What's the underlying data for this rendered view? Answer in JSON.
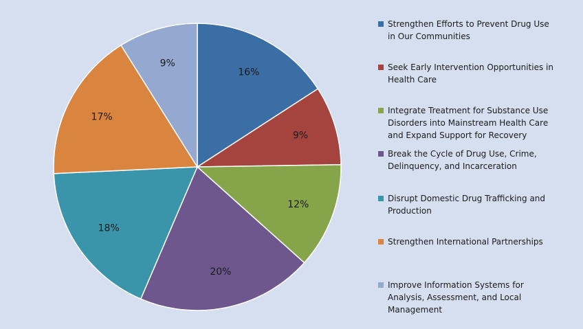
{
  "chart_data": {
    "type": "pie",
    "slices": [
      {
        "label": "Strengthen Efforts to Prevent Drug Use in Our Communities",
        "value": 16,
        "display": "16%",
        "color": "#3b6ea5"
      },
      {
        "label": "Seek Early Intervention Opportunities in Health Care",
        "value": 9,
        "display": "9%",
        "color": "#a5443f"
      },
      {
        "label": "Integrate Treatment for Substance Use Disorders into Mainstream Health Care and Expand Support for Recovery",
        "value": 12,
        "display": "12%",
        "color": "#86a44a"
      },
      {
        "label": "Break the Cycle of Drug Use, Crime, Delinquency, and Incarceration",
        "value": 20,
        "display": "20%",
        "color": "#6d578c"
      },
      {
        "label": "Disrupt Domestic Drug Trafficking and Production",
        "value": 18,
        "display": "18%",
        "color": "#3a95aa"
      },
      {
        "label": "Strengthen International Partnerships",
        "value": 17,
        "display": "17%",
        "color": "#d9843f"
      },
      {
        "label": "Improve Information Systems for Analysis, Assessment, and Local Management",
        "value": 9,
        "display": "9%",
        "color": "#95a9d0"
      }
    ],
    "start_angle": "12 o'clock",
    "direction": "clockwise",
    "legend_position": "right"
  },
  "legend": {
    "items": [
      {
        "lines": [
          "Strengthen Efforts to Prevent Drug Use",
          "in Our Communities"
        ]
      },
      {
        "lines": [
          "Seek Early Intervention Opportunities in",
          "Health Care"
        ]
      },
      {
        "lines": [
          "Integrate Treatment for Substance Use",
          "Disorders into Mainstream Health Care",
          "and Expand Support for Recovery"
        ]
      },
      {
        "lines": [
          "Break the Cycle of Drug Use, Crime,",
          "Delinquency, and Incarceration"
        ]
      },
      {
        "lines": [
          "Disrupt Domestic Drug Trafficking and",
          "Production"
        ]
      },
      {
        "lines": [
          "Strengthen International Partnerships"
        ]
      },
      {
        "lines": [
          "Improve Information Systems for",
          "Analysis, Assessment, and Local",
          "Management"
        ]
      }
    ]
  }
}
